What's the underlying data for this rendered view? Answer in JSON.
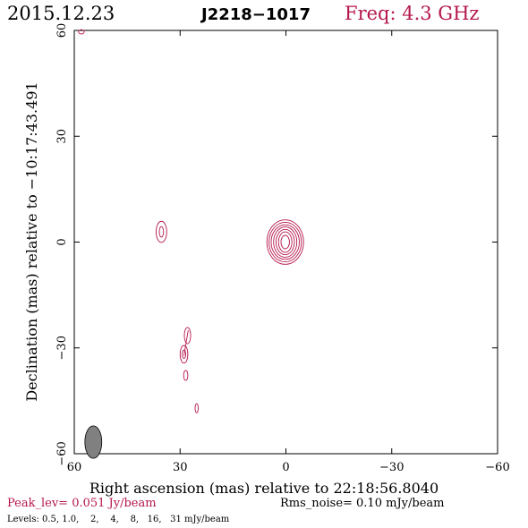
{
  "header": {
    "date": "2015.12.23",
    "source": "J2218−1017",
    "freq": "Freq: 4.3 GHz"
  },
  "footer": {
    "peak": "Peak_lev=  0.051 Jy/beam",
    "rms": "Rms_noise= 0.10 mJy/beam",
    "levels": "Levels: 0.5, 1.0,    2,    4,    8,   16,   31 mJy/beam"
  },
  "colors": {
    "accent": "#b5174b",
    "axis": "#000000",
    "beam": "#808080"
  },
  "chart_data": {
    "type": "contour",
    "xlabel": "Right ascension (mas) relative to 22:18:56.8040",
    "ylabel": "Declination (mas) relative to −10:17:43.491",
    "xlim": [
      60,
      -60
    ],
    "ylim": [
      -60,
      60
    ],
    "x_ticks": [
      {
        "value": 60,
        "label": "60"
      },
      {
        "value": 30,
        "label": "30"
      },
      {
        "value": 0,
        "label": "0"
      },
      {
        "value": -30,
        "label": "−30"
      },
      {
        "value": -60,
        "label": "−60"
      }
    ],
    "y_ticks": [
      {
        "value": -60,
        "label": "−60"
      },
      {
        "value": -30,
        "label": "−30"
      },
      {
        "value": 0,
        "label": "0"
      },
      {
        "value": 30,
        "label": "30"
      },
      {
        "value": 60,
        "label": "60"
      }
    ],
    "contour_levels_mJy": [
      0.5,
      1.0,
      2,
      4,
      8,
      16,
      31
    ],
    "core": {
      "ra": 0.2,
      "dec": 0,
      "contours": [
        {
          "a": 5.2,
          "b": 6.3
        },
        {
          "a": 4.6,
          "b": 5.6
        },
        {
          "a": 4.0,
          "b": 4.9
        },
        {
          "a": 3.3,
          "b": 4.3
        },
        {
          "a": 2.6,
          "b": 3.6
        },
        {
          "a": 1.9,
          "b": 2.9
        },
        {
          "a": 1.2,
          "b": 1.9
        }
      ]
    },
    "components": [
      {
        "ra": 35.3,
        "dec": 2.9,
        "contours": [
          {
            "a": 1.5,
            "b": 3.0
          },
          {
            "a": 0.6,
            "b": 1.5
          }
        ]
      },
      {
        "ra": 28.9,
        "dec": -31.8,
        "contours": [
          {
            "a": 1.1,
            "b": 2.5
          },
          {
            "a": 0.5,
            "b": 1.2
          }
        ]
      },
      {
        "ra": 27.9,
        "dec": -26.5,
        "contours": [
          {
            "a": 0.9,
            "b": 2.3
          }
        ]
      },
      {
        "ra": 28.4,
        "dec": -37.8,
        "contours": [
          {
            "a": 0.6,
            "b": 1.4
          }
        ]
      },
      {
        "ra": 25.3,
        "dec": -47.1,
        "contours": [
          {
            "a": 0.45,
            "b": 1.3
          }
        ]
      },
      {
        "ra": 58.0,
        "dec": 59.6,
        "contours": [
          {
            "a": 0.8,
            "b": 0.6
          }
        ]
      }
    ],
    "jet": {
      "points": [
        [
          28.9,
          -32.2
        ],
        [
          28.3,
          -28.5
        ],
        [
          27.7,
          -25.0
        ]
      ]
    },
    "beam": {
      "ra": 54.6,
      "dec": -56.7,
      "major": 4.6,
      "minor": 2.4,
      "pa_deg": 0
    }
  }
}
